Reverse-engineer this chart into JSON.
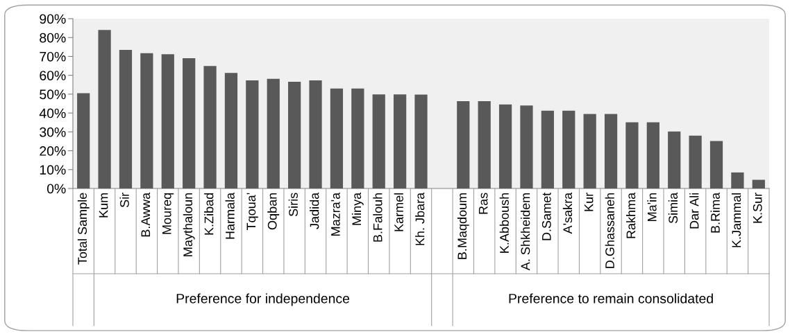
{
  "chart_data": {
    "type": "bar",
    "categories": [
      "Total Sample",
      "Kum",
      "Sir",
      "B.Awwa",
      "Moureq",
      "Maythaloun",
      "K.Zibad",
      "Harmala",
      "Tqoua'",
      "Oqban",
      "Siris",
      "Jadida",
      "Mazra'a",
      "Minya",
      "B.Falouh",
      "Karmel",
      "Kh. Jbara",
      null,
      "B.Maqdoum",
      "Ras",
      "K.Abboush",
      "A. Shkheidem",
      "D.Samet",
      "A'sakra",
      "Kur",
      "D.Ghassaneh",
      "Rakhma",
      "Ma'in",
      "Simia",
      "Dar Ali",
      "B.Rima",
      "K.Jammal",
      "K.Sur"
    ],
    "values": [
      50.5,
      84,
      73.5,
      71.7,
      71.2,
      69.1,
      64.9,
      61.3,
      57.3,
      58.1,
      56.6,
      57.3,
      53,
      53,
      49.9,
      49.9,
      49.8,
      null,
      46.3,
      46.3,
      44.5,
      44,
      41.2,
      41.2,
      39.5,
      39.5,
      35.1,
      35.1,
      30.2,
      28,
      25.2,
      8.5,
      4.6
    ],
    "color": "#595959",
    "ylim": [
      0,
      90
    ],
    "yticks": [
      {
        "value": 0,
        "label": "0%"
      },
      {
        "value": 10,
        "label": "10%"
      },
      {
        "value": 20,
        "label": "20%"
      },
      {
        "value": 30,
        "label": "30%"
      },
      {
        "value": 40,
        "label": "40%"
      },
      {
        "value": 50,
        "label": "50%"
      },
      {
        "value": 60,
        "label": "60%"
      },
      {
        "value": 70,
        "label": "70%"
      },
      {
        "value": 80,
        "label": "80%"
      },
      {
        "value": 90,
        "label": "90%"
      }
    ],
    "grid": false,
    "annotations": [
      "Preference for independence",
      "Preference to remain consolidated"
    ]
  }
}
